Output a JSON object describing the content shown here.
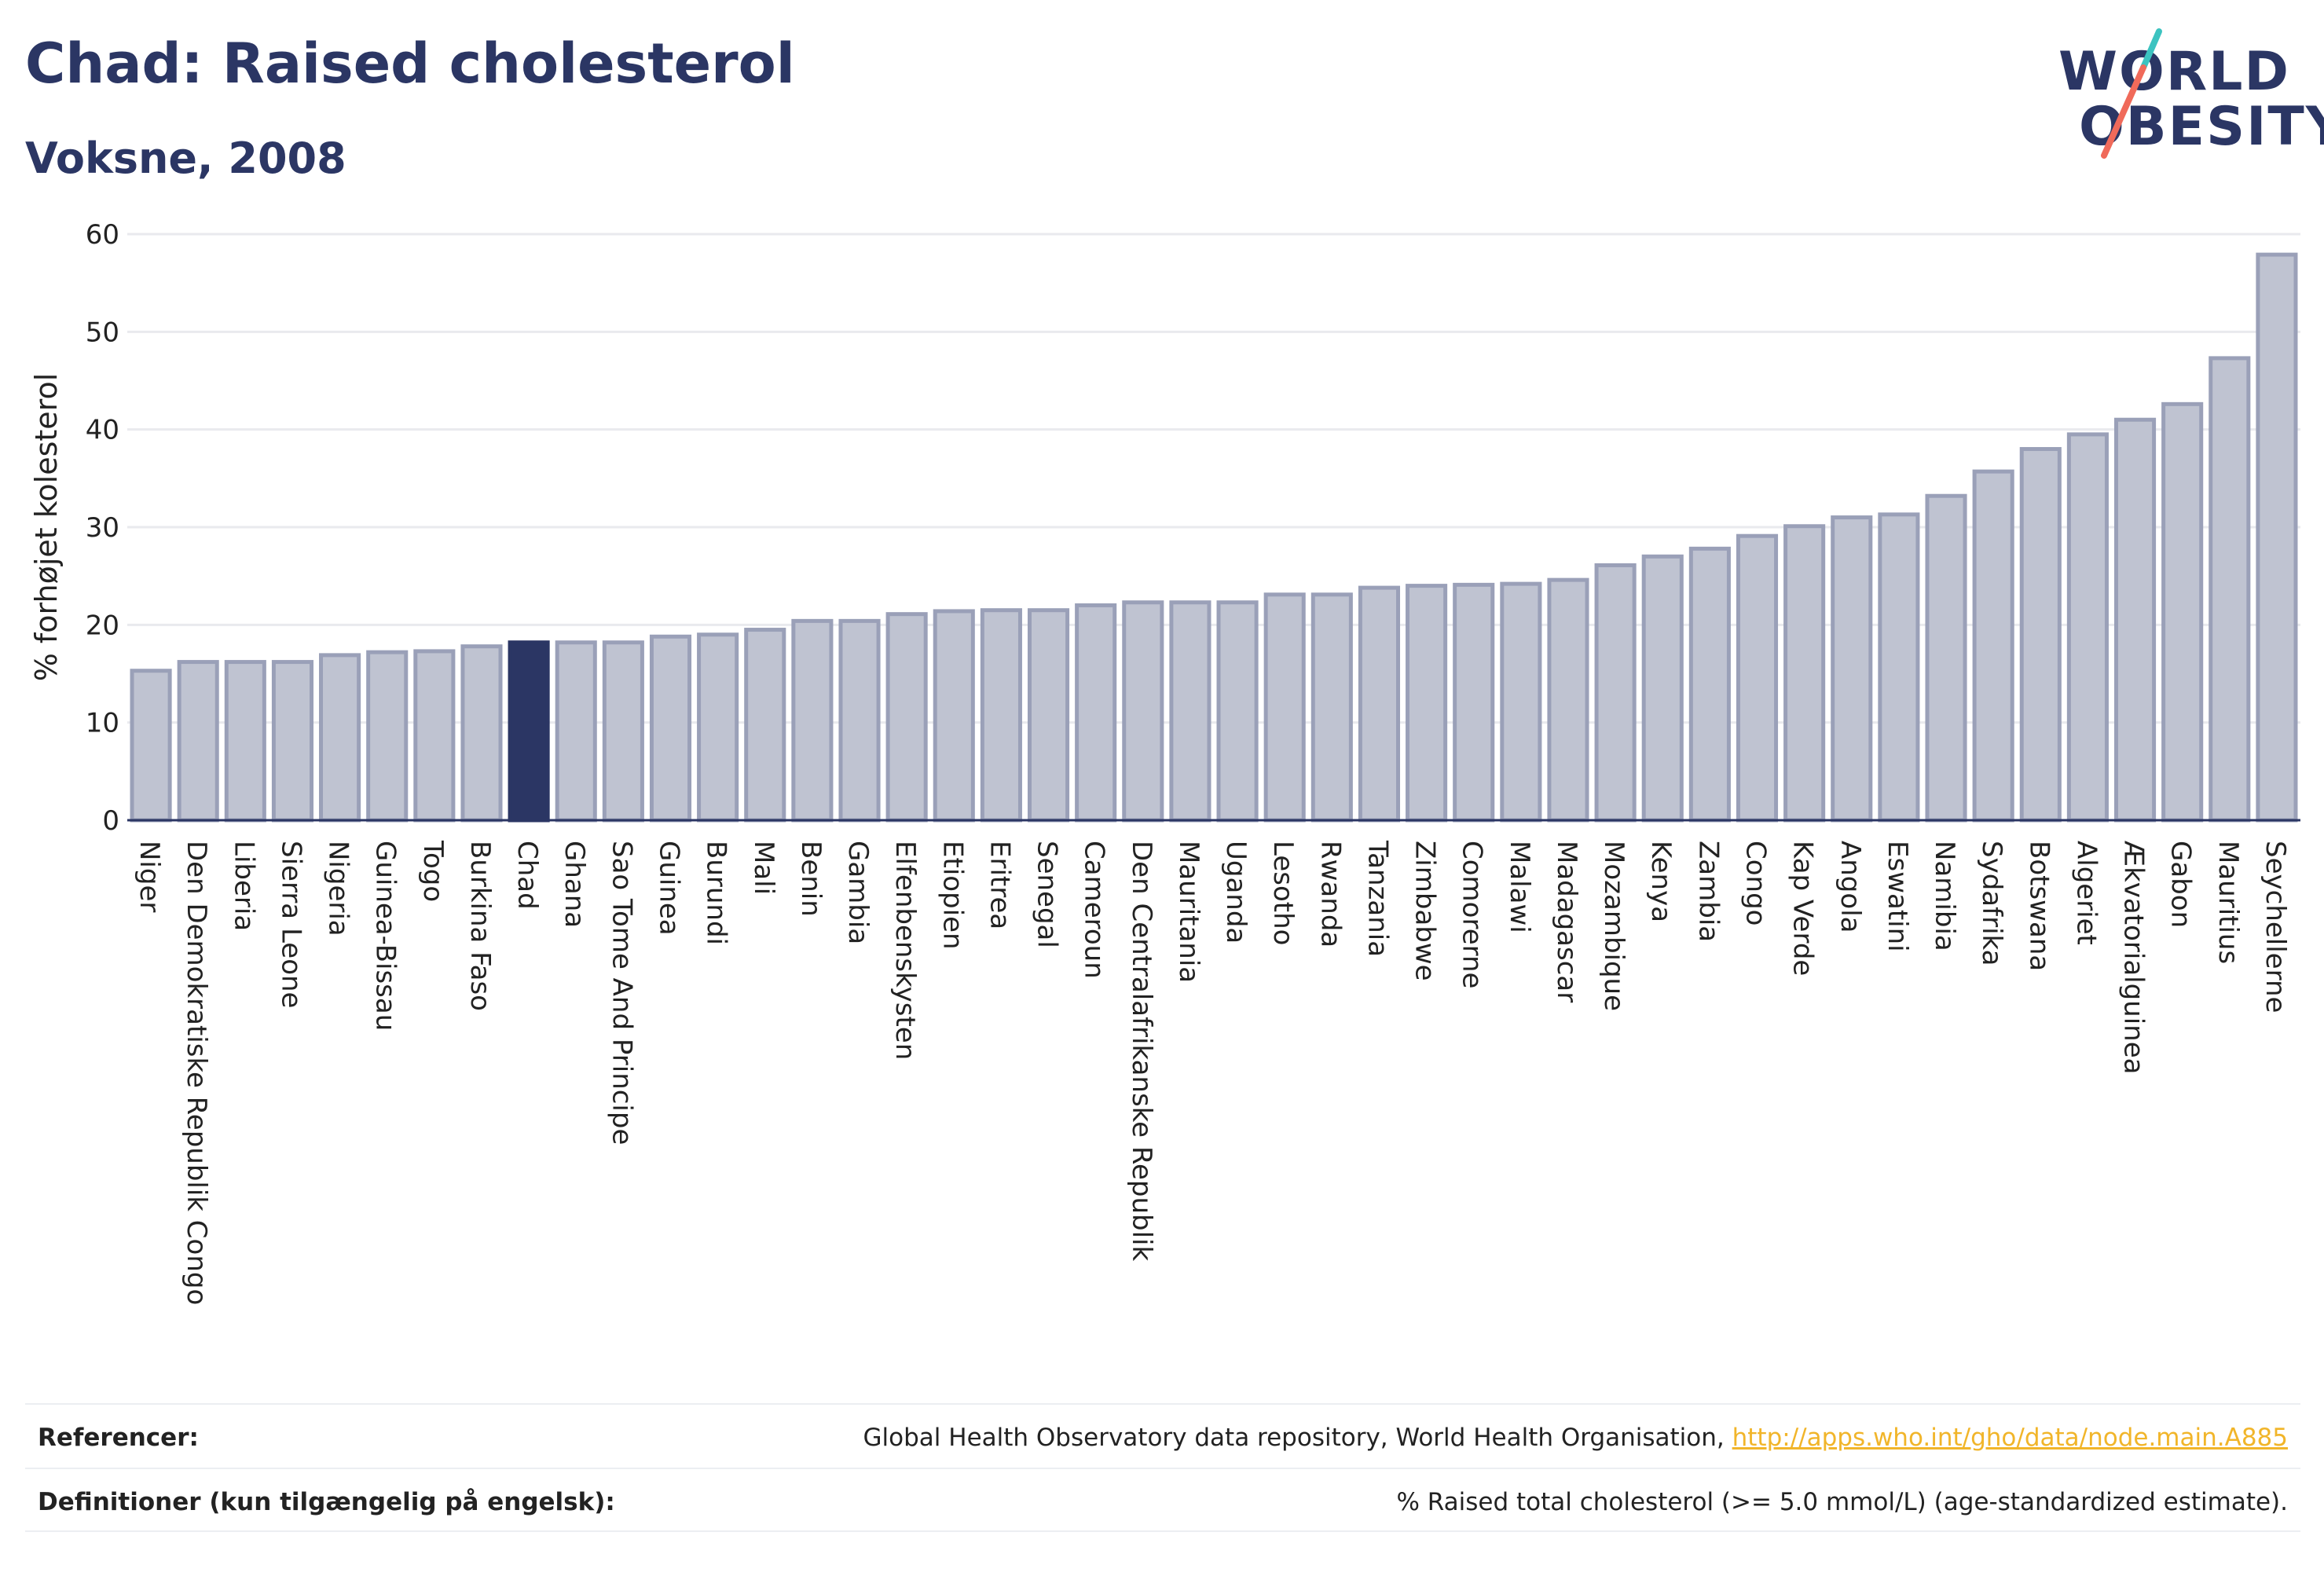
{
  "header": {
    "title": "Chad: Raised cholesterol",
    "subtitle": "Voksne, 2008"
  },
  "logo": {
    "line1": "WORLD",
    "line2": "OBESITY",
    "colors": {
      "text": "#2b3664",
      "accent_teal": "#3cc3c0",
      "accent_coral": "#f06a5a"
    }
  },
  "colors": {
    "bar": "#bfc3d1",
    "bar_stroke": "#9aa0b8",
    "highlight": "#2b3664",
    "axis_text": "#222222",
    "grid": "#e9eaee"
  },
  "chart_data": {
    "type": "bar",
    "title": "",
    "xlabel": "",
    "ylabel": "% forhøjet kolesterol",
    "ylim": [
      0,
      60
    ],
    "yticks": [
      0,
      10,
      20,
      30,
      40,
      50,
      60
    ],
    "grid": true,
    "highlight": "Chad",
    "categories": [
      "Niger",
      "Den Demokratiske Republik Congo",
      "Liberia",
      "Sierra Leone",
      "Nigeria",
      "Guinea-Bissau",
      "Togo",
      "Burkina Faso",
      "Chad",
      "Ghana",
      "Sao Tome And Principe",
      "Guinea",
      "Burundi",
      "Mali",
      "Benin",
      "Gambia",
      "Elfenbenskysten",
      "Etiopien",
      "Eritrea",
      "Senegal",
      "Cameroun",
      "Den Centralafrikanske Republik",
      "Mauritania",
      "Uganda",
      "Lesotho",
      "Rwanda",
      "Tanzania",
      "Zimbabwe",
      "Comorerne",
      "Malawi",
      "Madagascar",
      "Mozambique",
      "Kenya",
      "Zambia",
      "Congo",
      "Kap Verde",
      "Angola",
      "Eswatini",
      "Namibia",
      "Sydafrika",
      "Botswana",
      "Algeriet",
      "Ækvatorialguinea",
      "Gabon",
      "Mauritius",
      "Seychellerne"
    ],
    "values": [
      15.3,
      16.2,
      16.2,
      16.2,
      16.9,
      17.2,
      17.3,
      17.8,
      18.2,
      18.2,
      18.2,
      18.8,
      19.0,
      19.5,
      20.4,
      20.4,
      21.1,
      21.4,
      21.5,
      21.5,
      22.0,
      22.3,
      22.3,
      22.3,
      23.1,
      23.1,
      23.8,
      24.0,
      24.1,
      24.2,
      24.6,
      26.1,
      27.0,
      27.8,
      29.1,
      30.1,
      31.0,
      31.3,
      33.2,
      35.7,
      38.0,
      39.5,
      41.0,
      42.6,
      47.3,
      57.9
    ]
  },
  "footer": {
    "references_label": "Referencer:",
    "references_text": "Global Health Observatory data repository, World Health Organisation, ",
    "references_link": "http://apps.who.int/gho/data/node.main.A885",
    "definitions_label": "Definitioner (kun tilgængelig på engelsk):",
    "definitions_text": "% Raised total cholesterol (>= 5.0 mmol/L) (age-standardized estimate)."
  }
}
